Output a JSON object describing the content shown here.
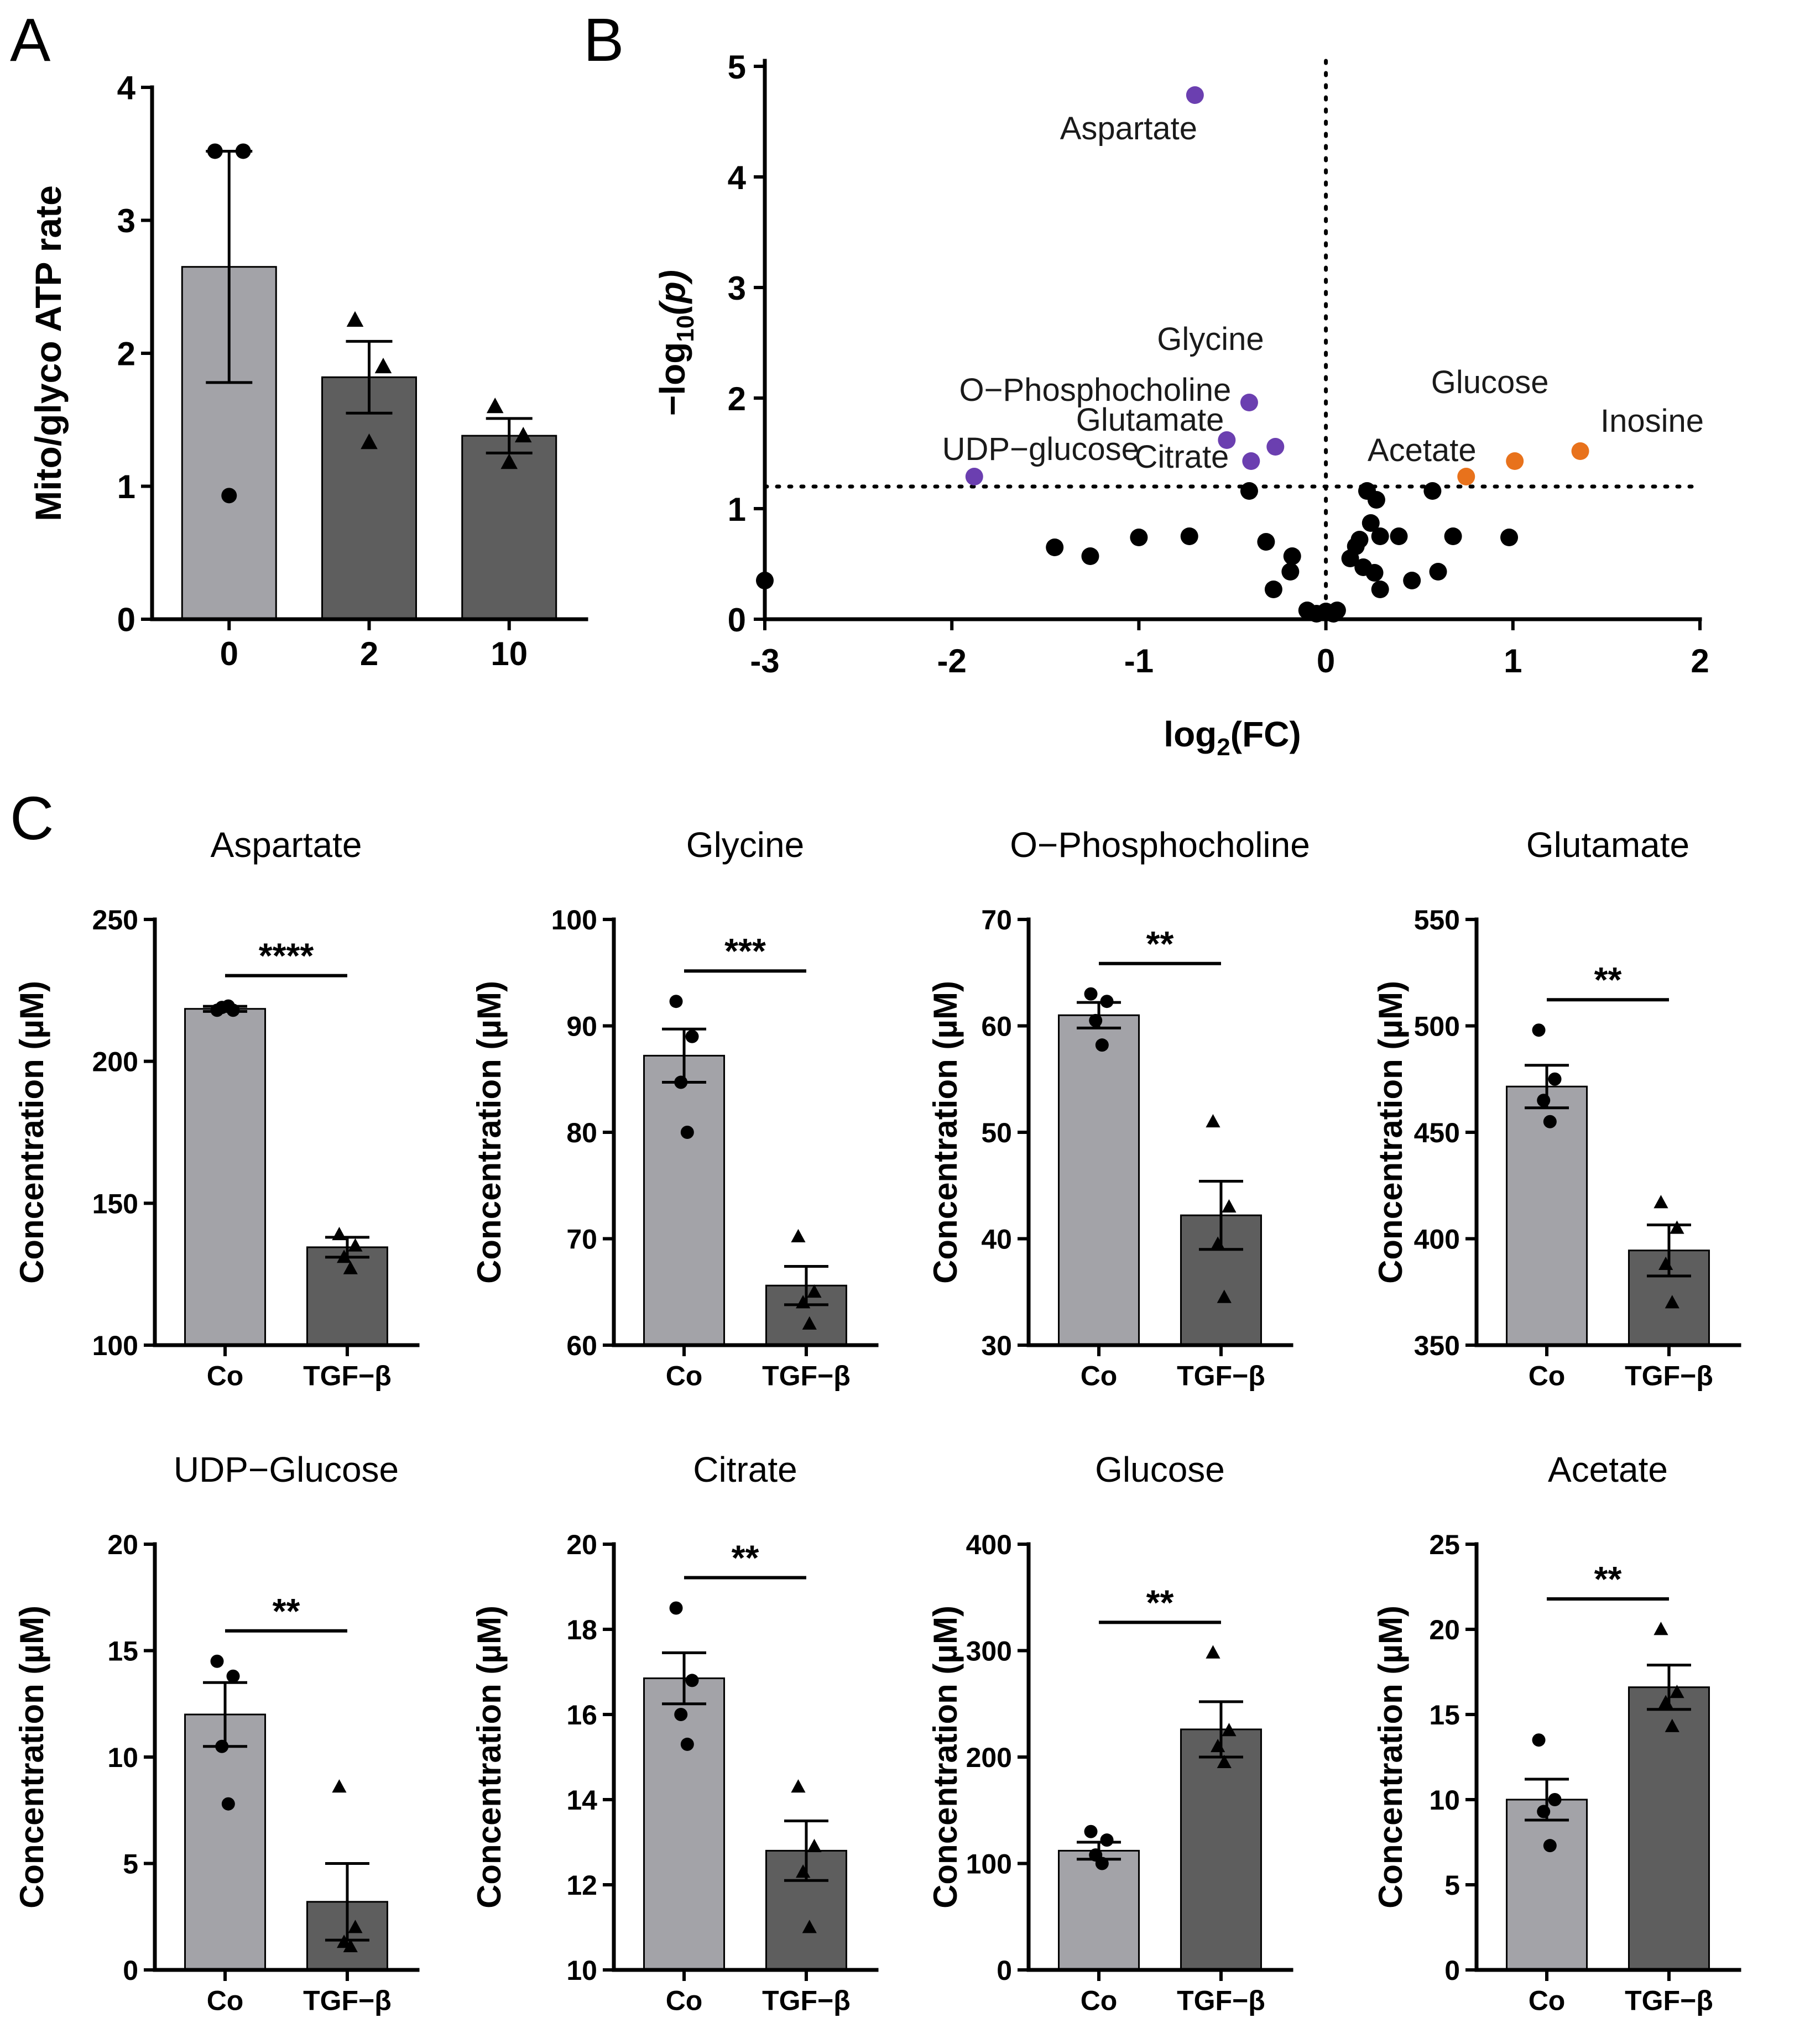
{
  "panel_labels": {
    "a": "A",
    "b": "B",
    "c": "C"
  },
  "colors": {
    "co_bar": "#a3a3a8",
    "tgf_bar": "#5e5e5e",
    "sig_down": "#6b3fb0",
    "sig_up": "#e8721c",
    "nonsig": "#000000"
  },
  "chart_data": [
    {
      "id": "A",
      "type": "bar",
      "title": "",
      "xlabel": "",
      "ylabel": "Mito/glyco ATP rate",
      "categories": [
        "0",
        "2",
        "10"
      ],
      "values": [
        2.65,
        1.82,
        1.38
      ],
      "error": [
        0.87,
        0.27,
        0.13
      ],
      "points": [
        [
          3.52,
          3.52,
          0.93
        ],
        [
          2.25,
          1.9,
          1.33
        ],
        [
          1.6,
          1.38,
          1.18
        ]
      ],
      "markers": [
        "circle",
        "triangle",
        "triangle"
      ],
      "ylim": [
        0,
        4
      ],
      "yticks": [
        0,
        1,
        2,
        3,
        4
      ],
      "ytick_labels": [
        "0",
        "1",
        "2",
        "3",
        "4"
      ]
    },
    {
      "id": "B",
      "type": "scatter",
      "title": "",
      "xlabel_main": "log",
      "xlabel_sub": "2",
      "xlabel_tail": "(FC)",
      "ylabel_main": "−log",
      "ylabel_sub": "10",
      "ylabel_tail": "(p)",
      "xlim": [
        -3,
        2
      ],
      "ylim": [
        0,
        5
      ],
      "xticks": [
        -3,
        -2,
        -1,
        0,
        1,
        2
      ],
      "xtick_labels": [
        "-3",
        "-2",
        "-1",
        "0",
        "1",
        "2"
      ],
      "yticks": [
        0,
        1,
        2,
        3,
        4,
        5
      ],
      "ytick_labels": [
        "0",
        "1",
        "2",
        "3",
        "4",
        "5"
      ],
      "threshold_y": 1.2,
      "threshold_x": 0,
      "labeled_points": [
        {
          "name": "Aspartate",
          "x": -0.7,
          "y": 4.74,
          "group": "down"
        },
        {
          "name": "Glycine",
          "x": -0.41,
          "y": 1.96,
          "group": "down"
        },
        {
          "name": "O−Phosphocholine",
          "x": -0.27,
          "y": 1.56,
          "group": "down"
        },
        {
          "name": "Glutamate",
          "x": -0.53,
          "y": 1.62,
          "group": "down"
        },
        {
          "name": "Citrate",
          "x": -0.4,
          "y": 1.43,
          "group": "down"
        },
        {
          "name": "UDP−glucose",
          "x": -1.88,
          "y": 1.29,
          "group": "down"
        },
        {
          "name": "Acetate",
          "x": 0.75,
          "y": 1.29,
          "group": "up"
        },
        {
          "name": "Glucose",
          "x": 1.01,
          "y": 1.43,
          "group": "up"
        },
        {
          "name": "Inosine",
          "x": 1.36,
          "y": 1.52,
          "group": "up"
        }
      ],
      "other_points": [
        [
          -3.0,
          0.35
        ],
        [
          -1.45,
          0.65
        ],
        [
          -1.26,
          0.57
        ],
        [
          -1.0,
          0.74
        ],
        [
          -0.73,
          0.75
        ],
        [
          -0.41,
          1.16
        ],
        [
          -0.32,
          0.7
        ],
        [
          -0.18,
          0.57
        ],
        [
          -0.19,
          0.43
        ],
        [
          -0.28,
          0.27
        ],
        [
          -0.1,
          0.08
        ],
        [
          -0.05,
          0.05
        ],
        [
          0.0,
          0.07
        ],
        [
          0.06,
          0.08
        ],
        [
          0.04,
          0.05
        ],
        [
          0.22,
          1.16
        ],
        [
          0.27,
          1.08
        ],
        [
          0.18,
          0.72
        ],
        [
          0.16,
          0.66
        ],
        [
          0.24,
          0.87
        ],
        [
          0.29,
          0.75
        ],
        [
          0.13,
          0.55
        ],
        [
          0.2,
          0.47
        ],
        [
          0.26,
          0.42
        ],
        [
          0.29,
          0.27
        ],
        [
          0.39,
          0.75
        ],
        [
          0.46,
          0.35
        ],
        [
          0.57,
          1.16
        ],
        [
          0.6,
          0.43
        ],
        [
          0.68,
          0.75
        ],
        [
          0.98,
          0.74
        ]
      ]
    },
    {
      "id": "C-aspartate",
      "type": "bar",
      "title": "Aspartate",
      "ylabel": "Concentration (µM)",
      "categories": [
        "Co",
        "TGF−β"
      ],
      "values": [
        218.5,
        134.5
      ],
      "error": [
        0.9,
        3.5
      ],
      "points": [
        [
          218,
          218,
          219,
          219.5
        ],
        [
          139,
          135,
          131,
          127
        ]
      ],
      "ylim": [
        100,
        250
      ],
      "yticks": [
        100,
        150,
        200,
        250
      ],
      "ytick_labels": [
        "100",
        "150",
        "200",
        "250"
      ],
      "significance": "****"
    },
    {
      "id": "C-glycine",
      "type": "bar",
      "title": "Glycine",
      "ylabel": "Concentration (µM)",
      "categories": [
        "Co",
        "TGF−β"
      ],
      "values": [
        87.2,
        65.6
      ],
      "error": [
        2.5,
        1.8
      ],
      "points": [
        [
          92.3,
          89.0,
          84.7,
          80.0
        ],
        [
          70.2,
          65.0,
          64.0,
          62.0
        ]
      ],
      "ylim": [
        60,
        100
      ],
      "yticks": [
        60,
        70,
        80,
        90,
        100
      ],
      "ytick_labels": [
        "60",
        "70",
        "80",
        "90",
        "100"
      ],
      "significance": "***"
    },
    {
      "id": "C-phosphocholine",
      "type": "bar",
      "title": "O−Phosphocholine",
      "ylabel": "Concentration (µM)",
      "categories": [
        "Co",
        "TGF−β"
      ],
      "values": [
        61.0,
        42.2
      ],
      "error": [
        1.2,
        3.2
      ],
      "points": [
        [
          63.0,
          62.3,
          60.5,
          58.2
        ],
        [
          51.0,
          43.0,
          39.5,
          34.5
        ]
      ],
      "ylim": [
        30,
        70
      ],
      "yticks": [
        30,
        40,
        50,
        60,
        70
      ],
      "ytick_labels": [
        "30",
        "40",
        "50",
        "60",
        "70"
      ],
      "significance": "**"
    },
    {
      "id": "C-glutamate",
      "type": "bar",
      "title": "Glutamate",
      "ylabel": "Concentration (µM)",
      "categories": [
        "Co",
        "TGF−β"
      ],
      "values": [
        471.5,
        394.5
      ],
      "error": [
        10.0,
        12.0
      ],
      "points": [
        [
          498,
          475,
          465,
          455
        ],
        [
          417,
          405,
          388,
          370
        ]
      ],
      "ylim": [
        350,
        550
      ],
      "yticks": [
        350,
        400,
        450,
        500,
        550
      ],
      "ytick_labels": [
        "350",
        "400",
        "450",
        "500",
        "550"
      ],
      "significance": "**"
    },
    {
      "id": "C-udpglucose",
      "type": "bar",
      "title": "UDP−Glucose",
      "ylabel": "Concentration (µM)",
      "categories": [
        "Co",
        "TGF−β"
      ],
      "values": [
        12.0,
        3.2
      ],
      "error": [
        1.5,
        1.8
      ],
      "points": [
        [
          14.5,
          13.8,
          10.5,
          7.8
        ],
        [
          8.6,
          2.0,
          1.3,
          1.1
        ]
      ],
      "ylim": [
        0,
        20
      ],
      "yticks": [
        0,
        5,
        10,
        15,
        20
      ],
      "ytick_labels": [
        "0",
        "5",
        "10",
        "15",
        "20"
      ],
      "significance": "**"
    },
    {
      "id": "C-citrate",
      "type": "bar",
      "title": "Citrate",
      "ylabel": "Concentration (µM)",
      "categories": [
        "Co",
        "TGF−β"
      ],
      "values": [
        16.85,
        12.8
      ],
      "error": [
        0.6,
        0.7
      ],
      "points": [
        [
          18.5,
          16.8,
          16.0,
          15.3
        ],
        [
          14.3,
          12.9,
          12.3,
          11.0
        ]
      ],
      "ylim": [
        10,
        20
      ],
      "yticks": [
        10,
        12,
        14,
        16,
        18,
        20
      ],
      "ytick_labels": [
        "10",
        "12",
        "14",
        "16",
        "18",
        "20"
      ],
      "significance": "**"
    },
    {
      "id": "C-glucose",
      "type": "bar",
      "title": "Glucose",
      "ylabel": "Concentration (µM)",
      "categories": [
        "Co",
        "TGF−β"
      ],
      "values": [
        112.0,
        226.0
      ],
      "error": [
        8.0,
        26.0
      ],
      "points": [
        [
          130,
          122,
          108,
          100
        ],
        [
          298,
          225,
          210,
          195
        ]
      ],
      "ylim": [
        0,
        400
      ],
      "yticks": [
        0,
        100,
        200,
        300,
        400
      ],
      "ytick_labels": [
        "0",
        "100",
        "200",
        "300",
        "400"
      ],
      "significance": "**"
    },
    {
      "id": "C-acetate",
      "type": "bar",
      "title": "Acetate",
      "ylabel": "Concentration (µM)",
      "categories": [
        "Co",
        "TGF−β"
      ],
      "values": [
        10.0,
        16.6
      ],
      "error": [
        1.2,
        1.3
      ],
      "points": [
        [
          13.5,
          10.0,
          9.3,
          7.3
        ],
        [
          20.0,
          16.3,
          15.7,
          14.3
        ]
      ],
      "ylim": [
        0,
        25
      ],
      "yticks": [
        0,
        5,
        10,
        15,
        20,
        25
      ],
      "ytick_labels": [
        "0",
        "5",
        "10",
        "15",
        "20",
        "25"
      ],
      "significance": "**"
    }
  ]
}
